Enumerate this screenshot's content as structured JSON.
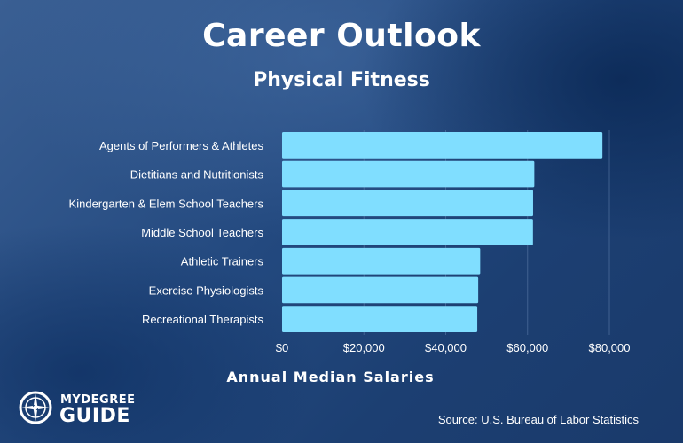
{
  "header": {
    "title": "Career Outlook",
    "subtitle": "Physical Fitness"
  },
  "chart_data": {
    "type": "bar",
    "orientation": "horizontal",
    "title": "Career Outlook",
    "subtitle": "Physical Fitness",
    "categories": [
      "Agents of Performers & Athletes",
      "Dietitians and Nutritionists",
      "Kindergarten & Elem School Teachers",
      "Middle School Teachers",
      "Athletic Trainers",
      "Exercise Physiologists",
      "Recreational Therapists"
    ],
    "values": [
      78300,
      61650,
      61350,
      61320,
      48420,
      47940,
      47710
    ],
    "xlabel": "Annual Median Salaries",
    "ylabel": "",
    "xlim": [
      0,
      80000
    ],
    "xticks": [
      0,
      20000,
      40000,
      60000,
      80000
    ],
    "xtick_labels": [
      "$0",
      "$20,000",
      "$40,000",
      "$60,000",
      "$80,000"
    ],
    "grid": true,
    "bar_color": "#80deff"
  },
  "footer": {
    "logo_top": "MYDEGREE",
    "logo_bottom": "GUIDE",
    "logo_icon": "compass-icon",
    "source": "Source: U.S. Bureau of Labor Statistics"
  },
  "colors": {
    "bar": "#80deff",
    "text": "#ffffff",
    "grid": "#5a7aa6"
  }
}
